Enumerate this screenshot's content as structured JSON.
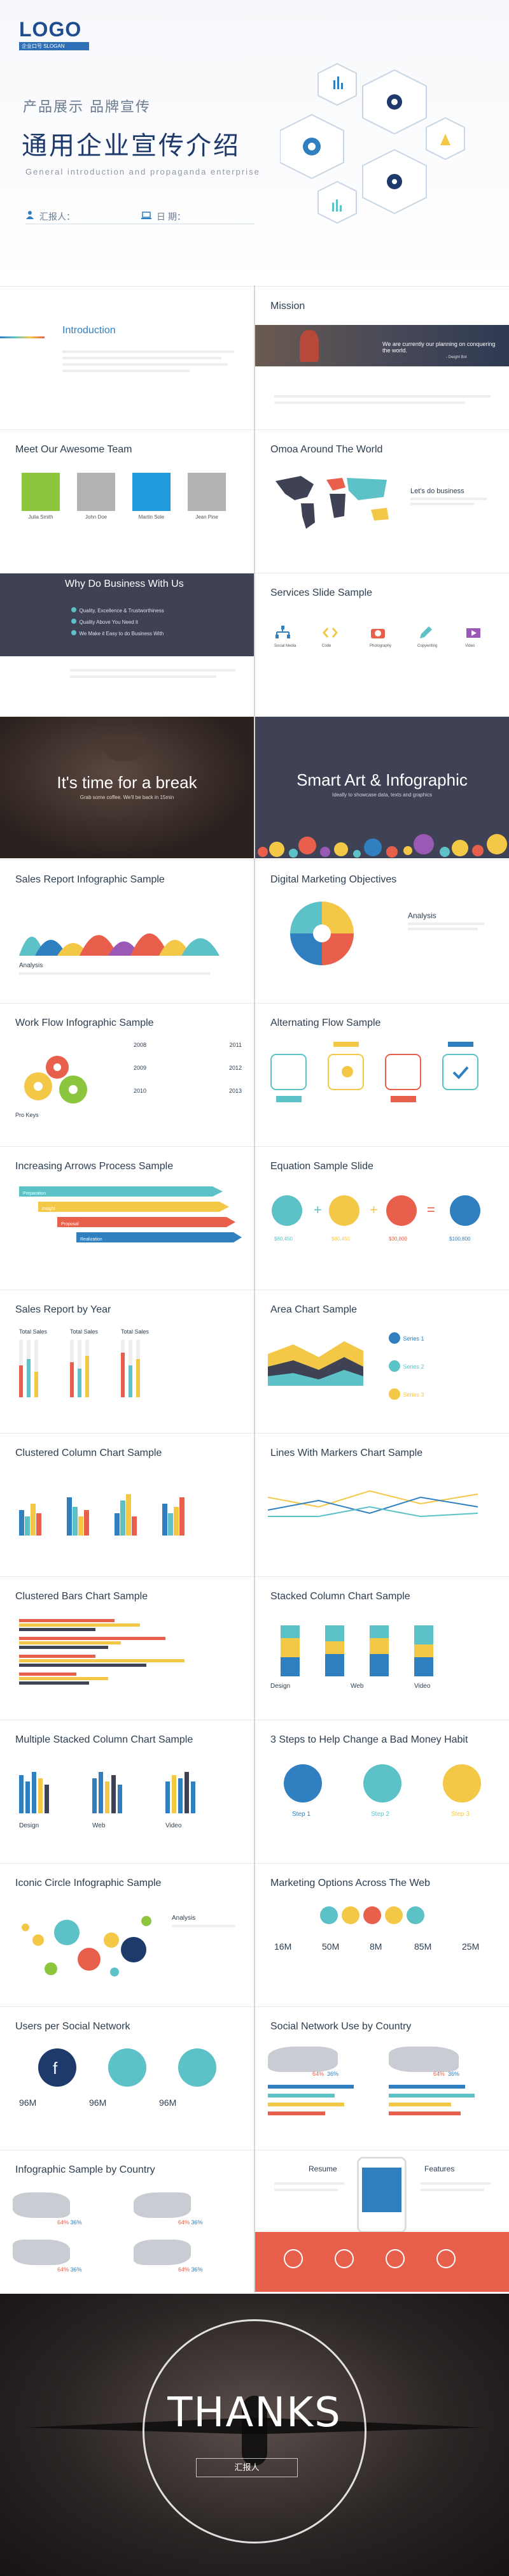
{
  "cover": {
    "logo": "LOGO",
    "logo_sub": "企业口号 SLOGAN",
    "tagline": "产品展示  品牌宣传",
    "title": "通用企业宣传介绍",
    "subtitle": "General introduction and propaganda enterprise",
    "reporter_label": "汇报人：",
    "date_label": "日   期："
  },
  "slides": {
    "intro": {
      "title": "Introduction"
    },
    "mission": {
      "title": "Mission",
      "quote": "We are currently our planning on conquering the world.",
      "quote_author": "- Dwight Bot"
    },
    "team": {
      "title": "Meet Our Awesome Team",
      "members": [
        "Julia Smith",
        "John Doe",
        "Martin Sole",
        "Jean Pine"
      ]
    },
    "world": {
      "title": "Omoa Around The World",
      "side_title": "Let's do business"
    },
    "why": {
      "title": "Why Do Business With Us",
      "items": [
        "Quality, Excellence & Trustworthiness",
        "Quality Above You Need it",
        "We Make it Easy to do Business With"
      ]
    },
    "services": {
      "title": "Services Slide Sample",
      "items": [
        "Social Media",
        "Code",
        "Photography",
        "Copywriting",
        "Video"
      ]
    },
    "break": {
      "title": "It's time for a break",
      "sub": "Grab some coffee. We'll be back in 15min"
    },
    "smartart": {
      "title": "Smart Art & Infographic",
      "sub": "Ideally to showcase data, texts and graphics"
    },
    "sales_report": {
      "title": "Sales Report Infographic Sample",
      "caption": "Analysis"
    },
    "digital": {
      "title": "Digital Marketing Objectives",
      "side_title": "Analysis"
    },
    "workflow": {
      "title": "Work Flow Infographic Sample",
      "left_label": "Pro Keys",
      "years": [
        "2008",
        "2011",
        "2009",
        "2012",
        "2010",
        "2013"
      ]
    },
    "alternating": {
      "title": "Alternating Flow Sample"
    },
    "arrows": {
      "title": "Increasing Arrows Process Sample",
      "labels": [
        "Preparation",
        "Insight",
        "Proposal",
        "Realization"
      ]
    },
    "equation": {
      "title": "Equation Sample Slide",
      "values": [
        "$60,450",
        "$80,450",
        "$30,800",
        "$100,800"
      ]
    },
    "sales_year": {
      "title": "Sales Report by Year",
      "heads": [
        "Total Sales",
        "Total Sales",
        "Total Sales"
      ]
    },
    "area": {
      "title": "Area Chart Sample",
      "series": [
        "Series 1",
        "Series 2",
        "Series 3"
      ]
    },
    "clustered_col": {
      "title": "Clustered Column Chart Sample"
    },
    "lines": {
      "title": "Lines With Markers Chart Sample"
    },
    "clustered_bars": {
      "title": "Clustered Bars Chart Sample"
    },
    "stacked_col": {
      "title": "Stacked Column Chart Sample",
      "labels": [
        "Design",
        "Web",
        "Video"
      ]
    },
    "multi_stacked": {
      "title": "Multiple Stacked Column Chart Sample",
      "labels": [
        "Design",
        "Web",
        "Video"
      ]
    },
    "steps": {
      "title": "3 Steps to Help Change a Bad Money Habit",
      "labels": [
        "Step 1",
        "Step 2",
        "Step 3"
      ]
    },
    "iconic": {
      "title": "Iconic Circle Infographic Sample",
      "side_title": "Analysis"
    },
    "marketing": {
      "title": "Marketing Options Across The Web",
      "values": [
        "16M",
        "50M",
        "8M",
        "85M",
        "25M"
      ]
    },
    "users_social": {
      "title": "Users per Social Network",
      "values": [
        "96M",
        "96M",
        "96M"
      ]
    },
    "social_country": {
      "title": "Social Network Use by Country",
      "pcts": [
        "64%",
        "36%",
        "64%",
        "36%"
      ]
    },
    "by_country": {
      "title": "Infographic Sample by Country",
      "pcts": [
        "64%",
        "36%",
        "64%",
        "36%",
        "64%",
        "36%",
        "64%",
        "36%"
      ]
    },
    "resume": {
      "left": "Resume",
      "right": "Features"
    }
  },
  "thanks": {
    "title": "THANKS",
    "reporter": "汇报人"
  },
  "colors": {
    "navy": "#1e3a6b",
    "blue": "#2f7fc1",
    "teal": "#5cc2c7",
    "yellow": "#f4c847",
    "red": "#e8604c",
    "dark": "#3f4254"
  }
}
